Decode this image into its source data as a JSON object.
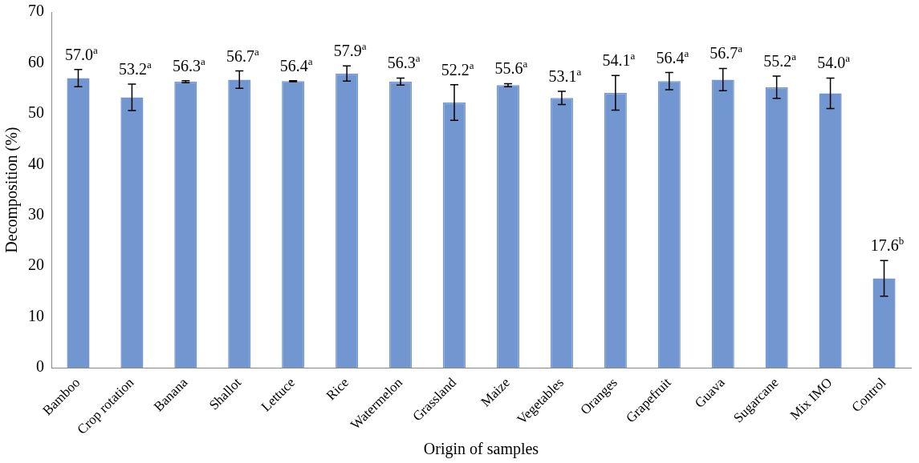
{
  "chart_data": {
    "type": "bar",
    "xlabel": "Origin of samples",
    "ylabel": "Decomposition (%)",
    "categories": [
      "Bamboo",
      "Crop rotation",
      "Banana",
      "Shallot",
      "Lettuce",
      "Rice",
      "Watermelon",
      "Grassland",
      "Maize",
      "Vegetables",
      "Oranges",
      "Grapefruit",
      "Guava",
      "Sugarcane",
      "Mix IMO",
      "Control"
    ],
    "values": [
      57.0,
      53.2,
      56.3,
      56.7,
      56.4,
      57.9,
      56.3,
      52.2,
      55.6,
      53.1,
      54.1,
      56.4,
      56.7,
      55.2,
      54.0,
      17.6
    ],
    "errors": [
      1.7,
      2.6,
      0.2,
      1.7,
      0.1,
      1.5,
      0.7,
      3.5,
      0.3,
      1.3,
      3.4,
      1.7,
      2.2,
      2.2,
      3.0,
      3.5
    ],
    "value_labels": [
      "57.0$^{a}$",
      "53.2$^{a}$",
      "56.3$^{a}$",
      "56.7$^{a}$",
      "56.4$^{a}$",
      "57.9$^{a}$",
      "56.3$^{a}$",
      "52.2$^{a}$",
      "55.6$^{a}$",
      "53.1$^{a}$",
      "54.1$^{a}$",
      "56.4$^{a}$",
      "56.7$^{a}$",
      "55.2$^{a}$",
      "54.0$^{a}$",
      "17.6$^{b}$"
    ],
    "color": "#7296cf",
    "ylim": [
      0,
      70
    ],
    "yticks": [
      0,
      10,
      20,
      30,
      40,
      50,
      60,
      70
    ],
    "grid": false,
    "legend": false
  }
}
